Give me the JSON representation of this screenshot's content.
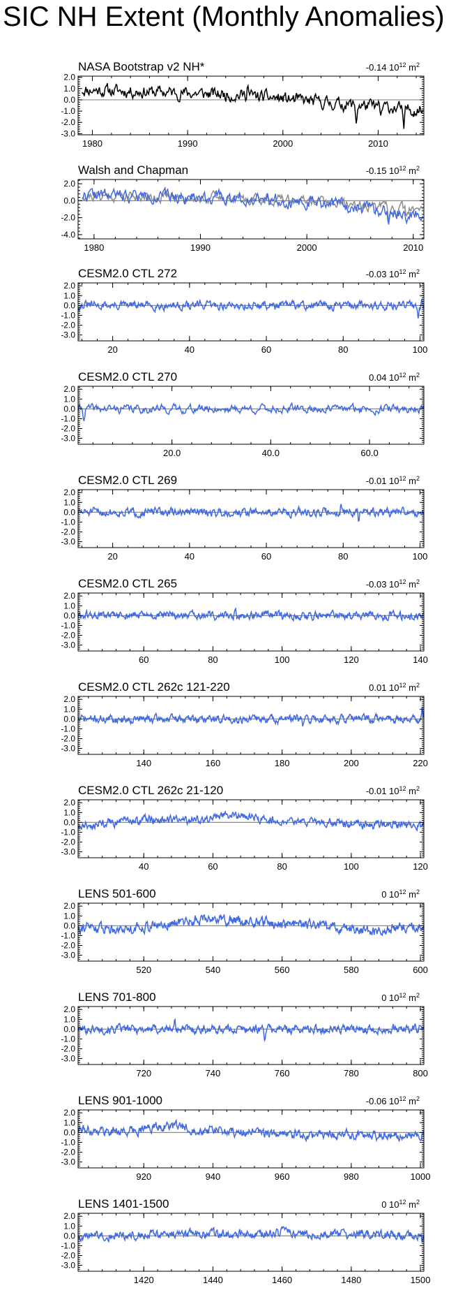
{
  "page_title": "SIC NH Extent (Monthly Anomalies)",
  "colors": {
    "obs": "#000000",
    "model": "#4169e1",
    "ref": "#8c8c8c",
    "axis": "#000000"
  },
  "chart_data": [
    {
      "type": "line",
      "title": "NASA Bootstrap v2 NH*",
      "stat": "-0.14",
      "unit": "10",
      "unit_sup": "12",
      "unit_tail": " m",
      "unit_sup2": "2",
      "xlim": [
        1978.5,
        2014.8
      ],
      "xticks": [
        1980,
        1990,
        2000,
        2010
      ],
      "xticklabels": [
        "1980",
        "1990",
        "2000",
        "2010"
      ],
      "ylim": [
        -3.1,
        2.1
      ],
      "yticks": [
        2.0,
        1.0,
        0.0,
        -1.0,
        -2.0,
        -3.0
      ],
      "yticklabels": [
        "2.0",
        "1.0",
        "0.0",
        "-1.0",
        "-2.0",
        "-3.0"
      ],
      "series": [
        {
          "color": "#000000",
          "n": 430,
          "x0": 1978.9,
          "x1": 2014.7,
          "seed": 11,
          "amp": 0.45,
          "trend": [
            [
              1978.9,
              0.9
            ],
            [
              1990,
              0.6
            ],
            [
              1996,
              0.4
            ],
            [
              2000,
              0.1
            ],
            [
              2005,
              -0.3
            ],
            [
              2014.7,
              -0.9
            ]
          ],
          "spikes": [
            [
              1996.3,
              1.2
            ],
            [
              2007.7,
              -1.5
            ],
            [
              2012.7,
              -2.4
            ],
            [
              2010.3,
              -1.0
            ]
          ]
        }
      ]
    },
    {
      "type": "line",
      "title": "Walsh and Chapman",
      "stat": "-0.15",
      "unit": "10",
      "unit_sup": "12",
      "unit_tail": " m",
      "unit_sup2": "2",
      "xlim": [
        1978.5,
        2011.0
      ],
      "xticks": [
        1980,
        1990,
        2000,
        2010
      ],
      "xticklabels": [
        "1980",
        "1990",
        "2000",
        "2010"
      ],
      "ylim": [
        -4.5,
        2.5
      ],
      "yticks": [
        2.0,
        0.0,
        -2.0,
        -4.0
      ],
      "yticklabels": [
        "2.0",
        "0.0",
        "-2.0",
        "-4.0"
      ],
      "series": [
        {
          "color": "#8c8c8c",
          "n": 380,
          "x0": 1978.9,
          "x1": 2010.9,
          "seed": 21,
          "amp": 0.5,
          "trend": [
            [
              1978.9,
              0.6
            ],
            [
              1995,
              0.3
            ],
            [
              2003,
              -0.3
            ],
            [
              2007,
              -0.8
            ],
            [
              2010.9,
              -1.2
            ]
          ],
          "spikes": [
            [
              2007.7,
              -1.8
            ],
            [
              2009.4,
              -1.3
            ]
          ]
        },
        {
          "color": "#4169e1",
          "n": 380,
          "x0": 1978.9,
          "x1": 2010.9,
          "seed": 22,
          "amp": 0.6,
          "trend": [
            [
              1978.9,
              0.7
            ],
            [
              1995,
              0.3
            ],
            [
              2003,
              -0.4
            ],
            [
              2007,
              -1.2
            ],
            [
              2010.9,
              -1.6
            ]
          ],
          "spikes": [
            [
              2007.7,
              -2.3
            ],
            [
              2009.4,
              -1.6
            ],
            [
              1996.3,
              0.9
            ]
          ]
        }
      ]
    },
    {
      "type": "line",
      "title": "CESM2.0 CTL 272",
      "stat": "-0.03",
      "unit": "10",
      "unit_sup": "12",
      "unit_tail": " m",
      "unit_sup2": "2",
      "xlim": [
        11,
        101
      ],
      "xticks": [
        20,
        40,
        60,
        80,
        100
      ],
      "xticklabels": [
        "20",
        "40",
        "60",
        "80",
        "100"
      ],
      "ylim": [
        -3.6,
        2.3
      ],
      "yticks": [
        2.0,
        1.0,
        0.0,
        -1.0,
        -2.0,
        -3.0
      ],
      "yticklabels": [
        "2.0",
        "1.0",
        "0.0",
        "-1.0",
        "-2.0",
        "-3.0"
      ],
      "series": [
        {
          "color": "#4169e1",
          "n": 540,
          "x0": 11,
          "x1": 101,
          "seed": 31,
          "amp": 0.35,
          "trend": [
            [
              11,
              0.0
            ],
            [
              101,
              0.0
            ]
          ],
          "spikes": [
            [
              100.5,
              0.9
            ],
            [
              99.5,
              -1.0
            ]
          ]
        }
      ]
    },
    {
      "type": "line",
      "title": "CESM2.0 CTL 270",
      "stat": "0.04",
      "unit": "10",
      "unit_sup": "12",
      "unit_tail": " m",
      "unit_sup2": "2",
      "xlim": [
        1,
        71
      ],
      "xticks": [
        20,
        40,
        60
      ],
      "xticklabels": [
        "20.0",
        "40.0",
        "60.0"
      ],
      "ylim": [
        -3.6,
        2.3
      ],
      "yticks": [
        2.0,
        1.0,
        0.0,
        -1.0,
        -2.0,
        -3.0
      ],
      "yticklabels": [
        "2.0",
        "1.0",
        "0.0",
        "-1.0",
        "-2.0",
        "-3.0"
      ],
      "series": [
        {
          "color": "#4169e1",
          "n": 420,
          "x0": 1,
          "x1": 71,
          "seed": 41,
          "amp": 0.35,
          "trend": [
            [
              1,
              0.0
            ],
            [
              71,
              0.0
            ]
          ],
          "spikes": [
            [
              2.2,
              -0.9
            ]
          ]
        }
      ]
    },
    {
      "type": "line",
      "title": "CESM2.0 CTL 269",
      "stat": "-0.01",
      "unit": "10",
      "unit_sup": "12",
      "unit_tail": " m",
      "unit_sup2": "2",
      "xlim": [
        11,
        101
      ],
      "xticks": [
        20,
        40,
        60,
        80,
        100
      ],
      "xticklabels": [
        "20",
        "40",
        "60",
        "80",
        "100"
      ],
      "ylim": [
        -3.6,
        2.3
      ],
      "yticks": [
        2.0,
        1.0,
        0.0,
        -1.0,
        -2.0,
        -3.0
      ],
      "yticklabels": [
        "2.0",
        "1.0",
        "0.0",
        "-1.0",
        "-2.0",
        "-3.0"
      ],
      "series": [
        {
          "color": "#4169e1",
          "n": 540,
          "x0": 11,
          "x1": 101,
          "seed": 51,
          "amp": 0.35,
          "trend": [
            [
              11,
              0.0
            ],
            [
              101,
              0.0
            ]
          ],
          "spikes": [
            [
              79.5,
              1.1
            ],
            [
              84,
              -1.2
            ]
          ]
        }
      ]
    },
    {
      "type": "line",
      "title": "CESM2.0 CTL 265",
      "stat": "-0.03",
      "unit": "10",
      "unit_sup": "12",
      "unit_tail": " m",
      "unit_sup2": "2",
      "xlim": [
        41,
        141
      ],
      "xticks": [
        60,
        80,
        100,
        120,
        140
      ],
      "xticklabels": [
        "60",
        "80",
        "100",
        "120",
        "140"
      ],
      "ylim": [
        -3.6,
        2.3
      ],
      "yticks": [
        2.0,
        1.0,
        0.0,
        -1.0,
        -2.0,
        -3.0
      ],
      "yticklabels": [
        "2.0",
        "1.0",
        "0.0",
        "-1.0",
        "-2.0",
        "-3.0"
      ],
      "series": [
        {
          "color": "#4169e1",
          "n": 600,
          "x0": 41,
          "x1": 141,
          "seed": 61,
          "amp": 0.33,
          "trend": [
            [
              41,
              0.0
            ],
            [
              141,
              0.0
            ]
          ],
          "spikes": [
            [
              86.5,
              1.0
            ]
          ]
        }
      ]
    },
    {
      "type": "line",
      "title": "CESM2.0 CTL 262c 121-220",
      "stat": "0.01",
      "unit": "10",
      "unit_sup": "12",
      "unit_tail": " m",
      "unit_sup2": "2",
      "xlim": [
        121,
        221
      ],
      "xticks": [
        140,
        160,
        180,
        200,
        220
      ],
      "xticklabels": [
        "140",
        "160",
        "180",
        "200",
        "220"
      ],
      "ylim": [
        -3.6,
        2.3
      ],
      "yticks": [
        2.0,
        1.0,
        0.0,
        -1.0,
        -2.0,
        -3.0
      ],
      "yticklabels": [
        "2.0",
        "1.0",
        "0.0",
        "-1.0",
        "-2.0",
        "-3.0"
      ],
      "series": [
        {
          "color": "#4169e1",
          "n": 600,
          "x0": 121,
          "x1": 221,
          "seed": 71,
          "amp": 0.33,
          "trend": [
            [
              121,
              0.0
            ],
            [
              221,
              0.0
            ]
          ],
          "spikes": [
            [
              186,
              -1.2
            ],
            [
              220.5,
              0.9
            ]
          ]
        }
      ]
    },
    {
      "type": "line",
      "title": "CESM2.0 CTL 262c 21-120",
      "stat": "-0.01",
      "unit": "10",
      "unit_sup": "12",
      "unit_tail": " m",
      "unit_sup2": "2",
      "xlim": [
        21,
        121
      ],
      "xticks": [
        40,
        60,
        80,
        100,
        120
      ],
      "xticklabels": [
        "40",
        "60",
        "80",
        "100",
        "120"
      ],
      "ylim": [
        -3.6,
        2.3
      ],
      "yticks": [
        2.0,
        1.0,
        0.0,
        -1.0,
        -2.0,
        -3.0
      ],
      "yticklabels": [
        "2.0",
        "1.0",
        "0.0",
        "-1.0",
        "-2.0",
        "-3.0"
      ],
      "series": [
        {
          "color": "#4169e1",
          "n": 600,
          "x0": 21,
          "x1": 121,
          "seed": 81,
          "amp": 0.35,
          "trend": [
            [
              21,
              -0.4
            ],
            [
              40,
              0.3
            ],
            [
              55,
              0.2
            ],
            [
              64,
              0.9
            ],
            [
              75,
              0.2
            ],
            [
              100,
              -0.1
            ],
            [
              121,
              -0.3
            ]
          ],
          "spikes": []
        }
      ]
    },
    {
      "type": "line",
      "title": "LENS 501-600",
      "stat": "0",
      "unit": "10",
      "unit_sup": "12",
      "unit_tail": " m",
      "unit_sup2": "2",
      "xlim": [
        501,
        601
      ],
      "xticks": [
        520,
        540,
        560,
        580,
        600
      ],
      "xticklabels": [
        "520",
        "540",
        "560",
        "580",
        "600"
      ],
      "ylim": [
        -3.6,
        2.3
      ],
      "yticks": [
        2.0,
        1.0,
        0.0,
        -1.0,
        -2.0,
        -3.0
      ],
      "yticklabels": [
        "2.0",
        "1.0",
        "0.0",
        "-1.0",
        "-2.0",
        "-3.0"
      ],
      "series": [
        {
          "color": "#4169e1",
          "n": 600,
          "x0": 501,
          "x1": 601,
          "seed": 91,
          "amp": 0.42,
          "trend": [
            [
              501,
              -0.1
            ],
            [
              515,
              -0.3
            ],
            [
              525,
              0.1
            ],
            [
              540,
              0.8
            ],
            [
              550,
              0.4
            ],
            [
              570,
              0.0
            ],
            [
              585,
              -0.5
            ],
            [
              601,
              0.0
            ]
          ],
          "spikes": []
        }
      ]
    },
    {
      "type": "line",
      "title": "LENS 701-800",
      "stat": "0",
      "unit": "10",
      "unit_sup": "12",
      "unit_tail": " m",
      "unit_sup2": "2",
      "xlim": [
        701,
        801
      ],
      "xticks": [
        720,
        740,
        760,
        780,
        800
      ],
      "xticklabels": [
        "720",
        "740",
        "760",
        "780",
        "800"
      ],
      "ylim": [
        -3.6,
        2.3
      ],
      "yticks": [
        2.0,
        1.0,
        0.0,
        -1.0,
        -2.0,
        -3.0
      ],
      "yticklabels": [
        "2.0",
        "1.0",
        "0.0",
        "-1.0",
        "-2.0",
        "-3.0"
      ],
      "series": [
        {
          "color": "#4169e1",
          "n": 600,
          "x0": 701,
          "x1": 801,
          "seed": 101,
          "amp": 0.35,
          "trend": [
            [
              701,
              0.0
            ],
            [
              801,
              0.0
            ]
          ],
          "spikes": [
            [
              729,
              1.0
            ],
            [
              755,
              -0.9
            ]
          ]
        }
      ]
    },
    {
      "type": "line",
      "title": "LENS 901-1000",
      "stat": "-0.06",
      "unit": "10",
      "unit_sup": "12",
      "unit_tail": " m",
      "unit_sup2": "2",
      "xlim": [
        901,
        1001
      ],
      "xticks": [
        920,
        940,
        960,
        980,
        1000
      ],
      "xticklabels": [
        "920",
        "940",
        "960",
        "980",
        "1000"
      ],
      "ylim": [
        -3.6,
        2.3
      ],
      "yticks": [
        2.0,
        1.0,
        0.0,
        -1.0,
        -2.0,
        -3.0
      ],
      "yticklabels": [
        "2.0",
        "1.0",
        "0.0",
        "-1.0",
        "-2.0",
        "-3.0"
      ],
      "series": [
        {
          "color": "#4169e1",
          "n": 600,
          "x0": 901,
          "x1": 1001,
          "seed": 111,
          "amp": 0.38,
          "trend": [
            [
              901,
              0.3
            ],
            [
              915,
              0.1
            ],
            [
              926,
              0.7
            ],
            [
              940,
              0.2
            ],
            [
              960,
              -0.2
            ],
            [
              1001,
              -0.3
            ]
          ],
          "spikes": []
        }
      ]
    },
    {
      "type": "line",
      "title": "LENS 1401-1500",
      "stat": "0",
      "unit": "10",
      "unit_sup": "12",
      "unit_tail": " m",
      "unit_sup2": "2",
      "xlim": [
        1401,
        1501
      ],
      "xticks": [
        1420,
        1440,
        1460,
        1480,
        1500
      ],
      "xticklabels": [
        "1420",
        "1440",
        "1460",
        "1480",
        "1500"
      ],
      "ylim": [
        -3.6,
        2.3
      ],
      "yticks": [
        2.0,
        1.0,
        0.0,
        -1.0,
        -2.0,
        -3.0
      ],
      "yticklabels": [
        "2.0",
        "1.0",
        "0.0",
        "-1.0",
        "-2.0",
        "-3.0"
      ],
      "series": [
        {
          "color": "#4169e1",
          "n": 600,
          "x0": 1401,
          "x1": 1501,
          "seed": 121,
          "amp": 0.35,
          "trend": [
            [
              1401,
              0.0
            ],
            [
              1460,
              0.3
            ],
            [
              1501,
              0.0
            ]
          ],
          "spikes": [
            [
              1500.5,
              -0.9
            ]
          ]
        }
      ]
    }
  ]
}
